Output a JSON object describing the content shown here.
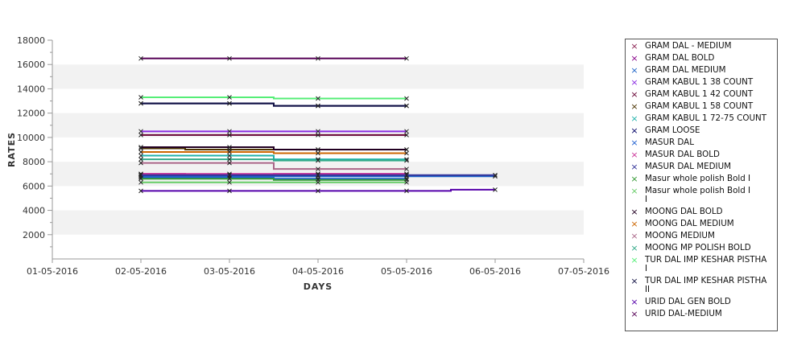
{
  "chart_data": {
    "type": "line",
    "title": "",
    "xlabel": "DAYS",
    "ylabel": "RATES",
    "x_ticks": [
      "01-05-2016",
      "02-05-2016",
      "03-05-2016",
      "04-05-2016",
      "05-05-2016",
      "06-05-2016",
      "07-05-2016"
    ],
    "y_ticks": [
      "2000",
      "4000",
      "6000",
      "8000",
      "10000",
      "12000",
      "14000",
      "16000",
      "18000"
    ],
    "ylim": [
      0,
      18000
    ],
    "grid": "alternating horizontal bands",
    "legend_position": "right",
    "series": [
      {
        "name": "GRAM DAL - MEDIUM",
        "color": "#8b2252",
        "x": [
          "02-05-2016",
          "03-05-2016",
          "04-05-2016",
          "05-05-2016"
        ],
        "values": [
          6900,
          6900,
          6900,
          6900
        ]
      },
      {
        "name": "GRAM DAL BOLD",
        "color": "#880088",
        "x": [
          "02-05-2016",
          "03-05-2016",
          "04-05-2016",
          "05-05-2016"
        ],
        "values": [
          7000,
          6900,
          7000,
          7000
        ]
      },
      {
        "name": "GRAM DAL MEDIUM",
        "color": "#1e64c8",
        "x": [
          "02-05-2016",
          "03-05-2016",
          "04-05-2016",
          "05-05-2016",
          "06-05-2016"
        ],
        "values": [
          6800,
          6800,
          6800,
          6800,
          6800
        ]
      },
      {
        "name": "GRAM KABUL 1 38 COUNT",
        "color": "#8a2be2",
        "x": [
          "02-05-2016",
          "03-05-2016",
          "04-05-2016",
          "05-05-2016"
        ],
        "values": [
          10500,
          10500,
          10500,
          10500
        ]
      },
      {
        "name": "GRAM KABUL 1 42 COUNT",
        "color": "#660033",
        "x": [
          "02-05-2016",
          "03-05-2016",
          "04-05-2016",
          "05-05-2016"
        ],
        "values": [
          10200,
          10200,
          10200,
          10200
        ]
      },
      {
        "name": "GRAM KABUL 1 58 COUNT",
        "color": "#4a3300",
        "x": [
          "02-05-2016",
          "03-05-2016",
          "04-05-2016",
          "05-05-2016"
        ],
        "values": [
          9100,
          9000,
          9000,
          9000
        ]
      },
      {
        "name": "GRAM KABUL 1 72-75 COUNT",
        "color": "#20b2aa",
        "x": [
          "02-05-2016",
          "03-05-2016",
          "04-05-2016",
          "05-05-2016"
        ],
        "values": [
          8500,
          8500,
          8200,
          8200
        ]
      },
      {
        "name": "GRAM LOOSE",
        "color": "#000066",
        "x": [
          "02-05-2016",
          "03-05-2016",
          "04-05-2016",
          "05-05-2016"
        ],
        "values": [
          12800,
          12800,
          12600,
          12600
        ]
      },
      {
        "name": "MASUR DAL",
        "color": "#2060d0",
        "x": [
          "02-05-2016",
          "03-05-2016",
          "04-05-2016",
          "05-05-2016"
        ],
        "values": [
          6700,
          6700,
          6600,
          6600
        ]
      },
      {
        "name": "MASUR DAL BOLD",
        "color": "#cc3399",
        "x": [
          "02-05-2016",
          "03-05-2016",
          "04-05-2016",
          "05-05-2016"
        ],
        "values": [
          7000,
          7000,
          7000,
          7000
        ]
      },
      {
        "name": "MASUR DAL MEDIUM",
        "color": "#333399",
        "x": [
          "02-05-2016",
          "03-05-2016",
          "04-05-2016",
          "05-05-2016",
          "06-05-2016"
        ],
        "values": [
          6900,
          6900,
          6900,
          6900,
          6900
        ]
      },
      {
        "name": "Masur whole polish Bold I",
        "color": "#339933",
        "x": [
          "02-05-2016",
          "03-05-2016",
          "04-05-2016",
          "05-05-2016"
        ],
        "values": [
          6600,
          6600,
          6500,
          6500
        ]
      },
      {
        "name": "Masur whole polish Bold I\nI",
        "color": "#66cc66",
        "x": [
          "02-05-2016",
          "03-05-2016",
          "04-05-2016",
          "05-05-2016"
        ],
        "values": [
          6300,
          6300,
          6300,
          6300
        ]
      },
      {
        "name": "MOONG DAL BOLD",
        "color": "#220022",
        "x": [
          "02-05-2016",
          "03-05-2016",
          "04-05-2016",
          "05-05-2016"
        ],
        "values": [
          9200,
          9200,
          9000,
          9000
        ]
      },
      {
        "name": "MOONG DAL MEDIUM",
        "color": "#cc6600",
        "x": [
          "02-05-2016",
          "03-05-2016",
          "04-05-2016",
          "05-05-2016"
        ],
        "values": [
          8800,
          8800,
          8700,
          8700
        ]
      },
      {
        "name": "MOONG MEDIUM",
        "color": "#aa6688",
        "x": [
          "02-05-2016",
          "03-05-2016",
          "04-05-2016",
          "05-05-2016"
        ],
        "values": [
          7900,
          7900,
          7400,
          7400
        ]
      },
      {
        "name": "MOONG MP POLISH BOLD",
        "color": "#33aa88",
        "x": [
          "02-05-2016",
          "03-05-2016",
          "04-05-2016",
          "05-05-2016"
        ],
        "values": [
          8200,
          8200,
          8100,
          8100
        ]
      },
      {
        "name": "TUR DAL IMP KESHAR PISTHA\n I",
        "color": "#55ee77",
        "x": [
          "02-05-2016",
          "03-05-2016",
          "04-05-2016",
          "05-05-2016"
        ],
        "values": [
          13300,
          13300,
          13200,
          13200
        ]
      },
      {
        "name": "TUR DAL IMP KESHAR PISTHA\n II",
        "color": "#111144",
        "x": [
          "02-05-2016",
          "03-05-2016",
          "04-05-2016",
          "05-05-2016"
        ],
        "values": [
          12800,
          12800,
          12600,
          12600
        ]
      },
      {
        "name": "URID DAL GEN BOLD",
        "color": "#5500aa",
        "x": [
          "02-05-2016",
          "03-05-2016",
          "04-05-2016",
          "05-05-2016",
          "06-05-2016"
        ],
        "values": [
          5600,
          5600,
          5600,
          5600,
          5700
        ]
      },
      {
        "name": "URID DAL-MEDIUM",
        "color": "#550055",
        "x": [
          "02-05-2016",
          "03-05-2016",
          "04-05-2016",
          "05-05-2016"
        ],
        "values": [
          16500,
          16500,
          16500,
          16500
        ]
      }
    ]
  }
}
